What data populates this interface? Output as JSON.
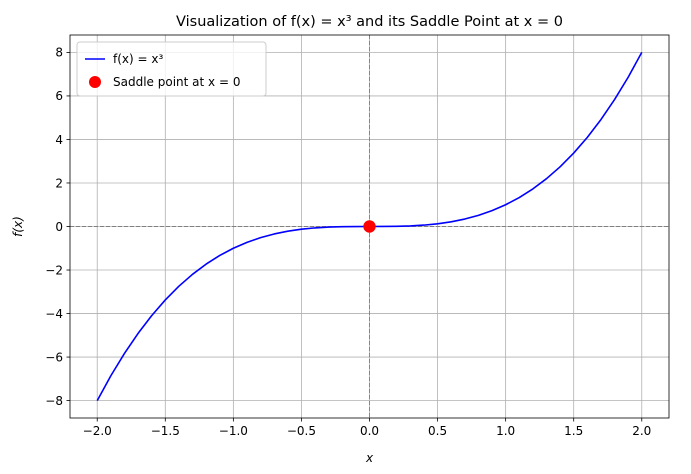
{
  "chart_data": {
    "type": "line",
    "title": "Visualization of f(x) = x³ and its Saddle Point at x = 0",
    "xlabel": "x",
    "ylabel": "f(x)",
    "xlim": [
      -2.2,
      2.2
    ],
    "ylim": [
      -8.8,
      8.8
    ],
    "xticks": [
      -2.0,
      -1.5,
      -1.0,
      -0.5,
      0.0,
      0.5,
      1.0,
      1.5,
      2.0
    ],
    "xtick_labels": [
      "−2.0",
      "−1.5",
      "−1.0",
      "−0.5",
      "0.0",
      "0.5",
      "1.0",
      "1.5",
      "2.0"
    ],
    "yticks": [
      -8,
      -6,
      -4,
      -2,
      0,
      2,
      4,
      6,
      8
    ],
    "ytick_labels": [
      "−8",
      "−6",
      "−4",
      "−2",
      "0",
      "2",
      "4",
      "6",
      "8"
    ],
    "grid": true,
    "legend_position": "top-left",
    "series": [
      {
        "name": "f(x) = x³",
        "kind": "line",
        "color": "#0000ff",
        "x": [
          -2.0,
          -1.9,
          -1.8,
          -1.7,
          -1.6,
          -1.5,
          -1.4,
          -1.3,
          -1.2,
          -1.1,
          -1.0,
          -0.9,
          -0.8,
          -0.7,
          -0.6,
          -0.5,
          -0.4,
          -0.3,
          -0.2,
          -0.1,
          0.0,
          0.1,
          0.2,
          0.3,
          0.4,
          0.5,
          0.6,
          0.7,
          0.8,
          0.9,
          1.0,
          1.1,
          1.2,
          1.3,
          1.4,
          1.5,
          1.6,
          1.7,
          1.8,
          1.9,
          2.0
        ],
        "y": [
          -8.0,
          -6.859,
          -5.832,
          -4.913,
          -4.096,
          -3.375,
          -2.744,
          -2.197,
          -1.728,
          -1.331,
          -1.0,
          -0.729,
          -0.512,
          -0.343,
          -0.216,
          -0.125,
          -0.064,
          -0.027,
          -0.008,
          -0.001,
          0.0,
          0.001,
          0.008,
          0.027,
          0.064,
          0.125,
          0.216,
          0.343,
          0.512,
          0.729,
          1.0,
          1.331,
          1.728,
          2.197,
          2.744,
          3.375,
          4.096,
          4.913,
          5.832,
          6.859,
          8.0
        ]
      },
      {
        "name": "Saddle point at x = 0",
        "kind": "scatter",
        "color": "#ff0000",
        "x": [
          0.0
        ],
        "y": [
          0.0
        ]
      }
    ],
    "reference_lines": {
      "horizontal_y": 0,
      "vertical_x": 0,
      "color": "#808080",
      "style": "dashed"
    }
  }
}
